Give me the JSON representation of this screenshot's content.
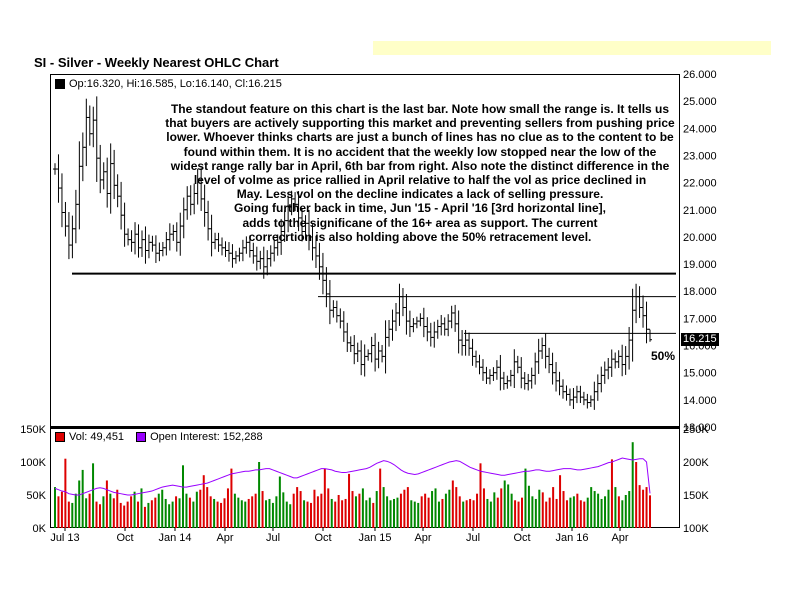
{
  "chart_title": "SI - Silver - Weekly Nearest OHLC Chart",
  "price_legend": {
    "text": "Op:16.320, Hi:16.585, Lo:16.140, Cl:16.215",
    "swatch_color": "#000000"
  },
  "annotation": [
    "The standout feature on this chart is the last bar.  Note how small the range is.  It tells us",
    "that buyers are actively supporting this market and preventing sellers from pushing price",
    "lower.  Whoever thinks charts are just a bunch of lines has no clue as to the content to be",
    "found within them.  It is no accident that the weekly low stopped near the low of the",
    "widest range rally bar in April, 6th bar from right.  Also note the distinct difference in the",
    "level of volme as price rallied in April relative to half the vol as price declined in",
    "May.  Less vol on the decline indicates a lack of selling pressure.",
    "Going further back in time, Jun '15 - April '16 [3rd horizontal line],",
    "adds to the significane of the 16+ area as support.  The current",
    "correcrtion is also holding above the 50% retracement level."
  ],
  "pct50_label": "50%",
  "last_price_label": "16.215",
  "volume_legend": {
    "vol_text": "Vol: 49,451",
    "vol_color": "#dd0000",
    "oi_text": "Open Interest: 152,288",
    "oi_color": "#9900ff"
  },
  "colors": {
    "vol_up": "#008800",
    "vol_down": "#dd0000",
    "open_interest": "#9900ff",
    "bars": "#000000"
  },
  "chart_data": [
    {
      "type": "ohlc",
      "title": "SI - Silver - Weekly Nearest OHLC Chart",
      "y_axis_side": "right",
      "ylim": [
        13,
        26
      ],
      "y_ticks": [
        "26.000",
        "25.000",
        "24.000",
        "23.000",
        "22.000",
        "21.000",
        "20.000",
        "19.000",
        "18.000",
        "17.000",
        "16.000",
        "15.000",
        "14.000",
        "13.000"
      ],
      "x_ticks": [
        "Jul 13",
        "Oct",
        "Jan 14",
        "Apr",
        "Jul",
        "Oct",
        "Jan 15",
        "Apr",
        "Jul",
        "Oct",
        "Jan 16",
        "Apr"
      ],
      "horizontal_lines": [
        {
          "y": 18.65,
          "from": "Jul 13",
          "to": "end",
          "weight": "heavy"
        },
        {
          "y": 17.8,
          "from": "Oct 14",
          "to": "end",
          "weight": "light"
        },
        {
          "y": 16.45,
          "from": "Jun 15",
          "to": "end",
          "weight": "light"
        }
      ],
      "last_bar": {
        "open": 16.32,
        "high": 16.585,
        "low": 16.14,
        "close": 16.215
      },
      "close_series": [
        22.5,
        21.8,
        20.9,
        20.4,
        19.7,
        20.3,
        21.2,
        22.6,
        23.3,
        24.4,
        23.8,
        24.3,
        22.9,
        22.1,
        22.4,
        21.6,
        22.7,
        21.9,
        21.5,
        20.8,
        20.1,
        19.9,
        19.8,
        20.1,
        19.6,
        19.9,
        19.5,
        19.8,
        19.7,
        19.4,
        19.5,
        19.6,
        19.9,
        20.1,
        20.2,
        19.8,
        20.4,
        21.0,
        21.5,
        21.2,
        21.6,
        22.1,
        21.4,
        20.9,
        20.3,
        19.8,
        19.9,
        19.7,
        19.6,
        19.5,
        19.4,
        19.2,
        19.3,
        19.4,
        19.6,
        19.8,
        19.5,
        19.3,
        19.1,
        19.2,
        18.9,
        19.2,
        19.4,
        19.6,
        19.8,
        20.2,
        20.6,
        21.1,
        21.4,
        21.2,
        20.7,
        20.2,
        20.5,
        20.0,
        19.6,
        19.3,
        18.9,
        18.4,
        17.9,
        17.3,
        17.4,
        17.1,
        16.9,
        16.5,
        16.1,
        16.0,
        15.7,
        15.8,
        15.3,
        15.6,
        15.7,
        16.0,
        15.5,
        15.8,
        15.6,
        16.3,
        16.6,
        16.9,
        17.2,
        17.8,
        17.4,
        16.9,
        16.7,
        16.8,
        16.9,
        17.0,
        16.7,
        16.5,
        16.3,
        16.5,
        16.7,
        16.8,
        16.6,
        16.9,
        17.2,
        16.8,
        16.2,
        16.0,
        16.2,
        15.9,
        15.6,
        15.4,
        15.2,
        15.0,
        14.8,
        14.9,
        15.0,
        15.2,
        14.8,
        14.6,
        14.7,
        14.9,
        15.4,
        15.2,
        14.8,
        14.6,
        14.7,
        14.9,
        15.4,
        15.8,
        16.0,
        15.6,
        15.3,
        15.0,
        14.7,
        14.5,
        14.3,
        14.2,
        14.0,
        14.1,
        14.3,
        14.1,
        14.0,
        13.9,
        14.0,
        14.3,
        14.6,
        14.9,
        15.1,
        15.2,
        15.5,
        15.4,
        15.6,
        15.3,
        15.6,
        16.2,
        17.3,
        17.8,
        17.4,
        17.1,
        16.6,
        16.215
      ]
    },
    {
      "type": "bar",
      "title": "Volume",
      "y_axis_side": "left",
      "ylim": [
        0,
        150000
      ],
      "y_ticks": [
        "150K",
        "100K",
        "50K",
        "0K"
      ],
      "secondary_axis": {
        "side": "right",
        "ylim": [
          100000,
          250000
        ],
        "ticks": [
          "250K",
          "200K",
          "150K",
          "100K"
        ]
      },
      "series": [
        {
          "name": "Vol: 49,451",
          "color_up": "#008800",
          "color_down": "#dd0000",
          "values": [
            62000,
            48000,
            55000,
            105000,
            40000,
            38000,
            52000,
            72000,
            88000,
            45000,
            52000,
            98000,
            40000,
            36000,
            48000,
            72000,
            52000,
            45000,
            58000,
            38000,
            34000,
            40000,
            48000,
            55000,
            40000,
            60000,
            32000,
            38000,
            42000,
            46000,
            52000,
            58000,
            44000,
            36000,
            40000,
            48000,
            45000,
            95000,
            52000,
            46000,
            40000,
            55000,
            58000,
            80000,
            62000,
            48000,
            44000,
            40000,
            38000,
            45000,
            60000,
            90000,
            52000,
            46000,
            42000,
            40000,
            44000,
            48000,
            52000,
            100000,
            56000,
            42000,
            44000,
            38000,
            48000,
            78000,
            54000,
            40000,
            36000,
            52000,
            62000,
            56000,
            42000,
            40000,
            38000,
            58000,
            48000,
            52000,
            90000,
            60000,
            44000,
            40000,
            50000,
            42000,
            44000,
            82000,
            56000,
            48000,
            52000,
            60000,
            42000,
            46000,
            38000,
            56000,
            90000,
            62000,
            48000,
            42000,
            44000,
            46000,
            52000,
            58000,
            62000,
            42000,
            40000,
            38000,
            48000,
            52000,
            46000,
            56000,
            60000,
            40000,
            44000,
            52000,
            58000,
            72000,
            62000,
            48000,
            40000,
            42000,
            44000,
            42000,
            52000,
            98000,
            60000,
            44000,
            40000,
            54000,
            46000,
            60000,
            72000,
            66000,
            52000,
            42000,
            40000,
            46000,
            90000,
            64000,
            48000,
            44000,
            58000,
            54000,
            40000,
            46000,
            62000,
            44000,
            80000,
            56000,
            42000,
            46000,
            48000,
            52000,
            42000,
            40000,
            46000,
            62000,
            56000,
            52000,
            44000,
            48000,
            58000,
            104000,
            62000,
            48000,
            42000,
            50000,
            56000,
            130000,
            100000,
            65000,
            58000,
            62000,
            49451
          ]
        },
        {
          "name": "Open Interest: 152,288",
          "color": "#9900ff",
          "values": [
            160000,
            158000,
            156000,
            155000,
            152000,
            151000,
            150000,
            150000,
            152000,
            154000,
            156000,
            158000,
            160000,
            161000,
            160000,
            158000,
            156000,
            154000,
            153000,
            152000,
            151000,
            150000,
            150000,
            151000,
            152000,
            153000,
            154000,
            155000,
            156000,
            158000,
            160000,
            162000,
            163000,
            164000,
            165000,
            164000,
            163000,
            162000,
            162000,
            163000,
            164000,
            165000,
            166000,
            167000,
            168000,
            170000,
            172000,
            174000,
            176000,
            178000,
            180000,
            182000,
            183000,
            184000,
            185000,
            186000,
            186000,
            187000,
            188000,
            188000,
            189000,
            190000,
            190000,
            188000,
            186000,
            184000,
            182000,
            180000,
            178000,
            176000,
            176000,
            178000,
            180000,
            182000,
            184000,
            186000,
            188000,
            190000,
            190000,
            189000,
            188000,
            186000,
            185000,
            184000,
            184000,
            185000,
            186000,
            187000,
            188000,
            189000,
            190000,
            192000,
            195000,
            198000,
            200000,
            202000,
            201000,
            199000,
            196000,
            192000,
            188000,
            185000,
            183000,
            182000,
            181000,
            182000,
            184000,
            186000,
            188000,
            190000,
            192000,
            194000,
            196000,
            198000,
            200000,
            201000,
            202000,
            201000,
            198000,
            195000,
            192000,
            190000,
            188000,
            186000,
            185000,
            184000,
            183000,
            182000,
            181000,
            180000,
            180000,
            181000,
            182000,
            183000,
            184000,
            185000,
            186000,
            186000,
            187000,
            188000,
            188000,
            187000,
            186000,
            186000,
            187000,
            188000,
            189000,
            190000,
            190000,
            190000,
            189000,
            188000,
            188000,
            189000,
            190000,
            191000,
            192000,
            193000,
            195000,
            197000,
            199000,
            200000,
            202000,
            204000,
            206000,
            205000,
            204000,
            203000,
            204000,
            205000,
            205000,
            200000,
            152288
          ]
        }
      ]
    }
  ]
}
